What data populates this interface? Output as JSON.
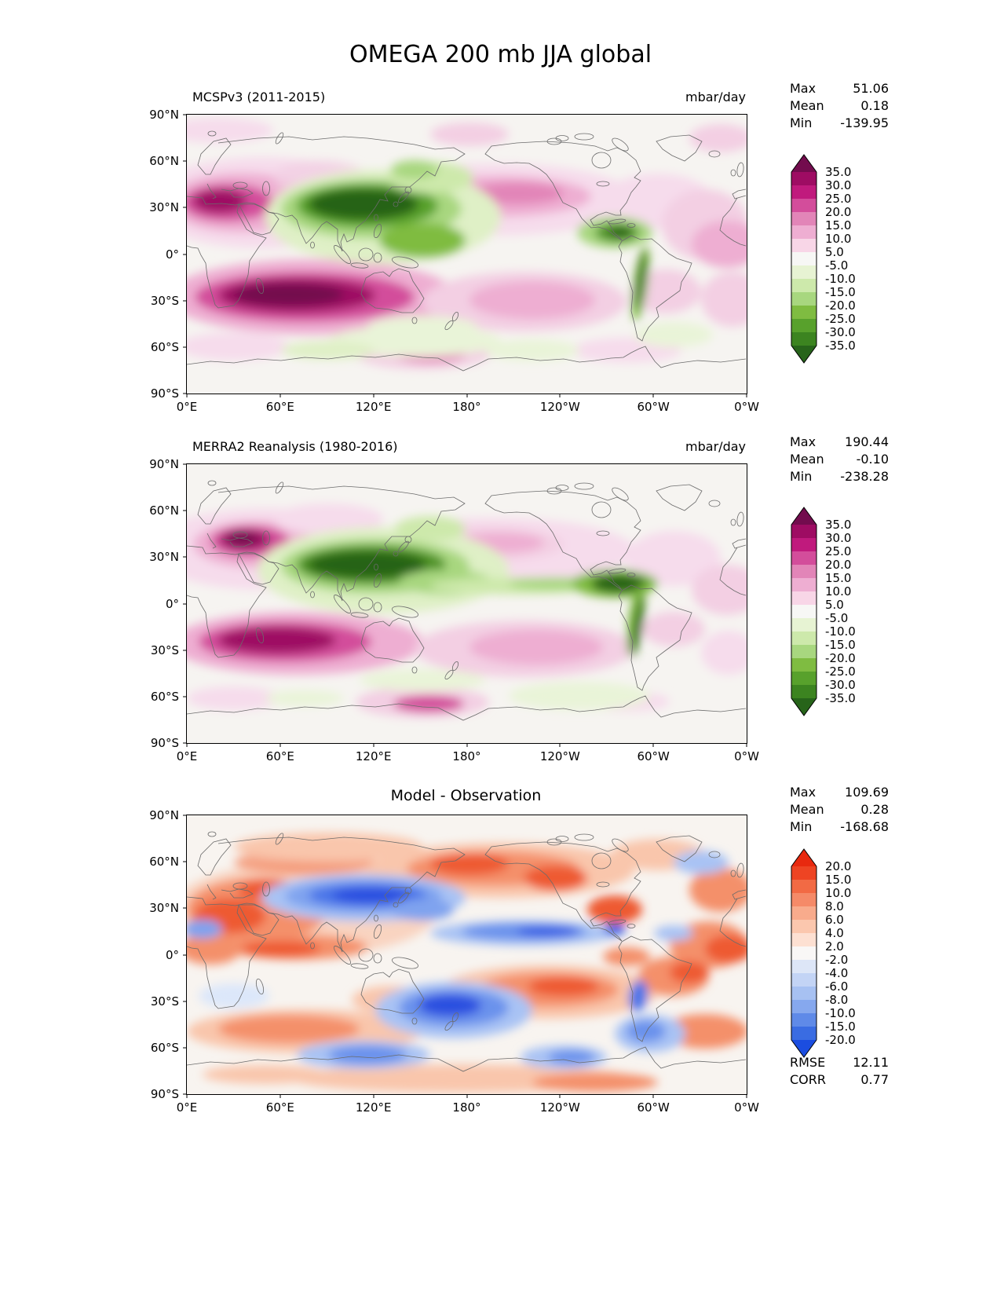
{
  "figure": {
    "title": "OMEGA 200 mb JJA global"
  },
  "axes": {
    "x_ticks": [
      "0°E",
      "60°E",
      "120°E",
      "180°",
      "120°W",
      "60°W",
      "0°W"
    ],
    "y_ticks": [
      "90°N",
      "60°N",
      "30°N",
      "0°",
      "30°S",
      "60°S",
      "90°S"
    ]
  },
  "panels": [
    {
      "title": "MCSPv3 (2011-2015)",
      "units": "mbar/day",
      "stats": [
        {
          "label": "Max",
          "value": "51.06"
        },
        {
          "label": "Mean",
          "value": "0.18"
        },
        {
          "label": "Min",
          "value": "-139.95"
        }
      ],
      "colorbar": {
        "labels": [
          "35.0",
          "30.0",
          "25.0",
          "20.0",
          "15.0",
          "10.0",
          "5.0",
          "-5.0",
          "-10.0",
          "-15.0",
          "-20.0",
          "-25.0",
          "-30.0",
          "-35.0"
        ],
        "colors": [
          "#730c4e",
          "#9e0c63",
          "#c01a7d",
          "#d34d9b",
          "#e285b8",
          "#eeaed2",
          "#f8d6e7",
          "#f7f7f5",
          "#e7f3d3",
          "#cde9ab",
          "#a8d77f",
          "#7fbc41",
          "#58a12c",
          "#3c8420",
          "#27641a"
        ]
      }
    },
    {
      "title": "MERRA2 Reanalysis (1980-2016)",
      "units": "mbar/day",
      "stats": [
        {
          "label": "Max",
          "value": "190.44"
        },
        {
          "label": "Mean",
          "value": "-0.10"
        },
        {
          "label": "Min",
          "value": "-238.28"
        }
      ],
      "colorbar": {
        "labels": [
          "35.0",
          "30.0",
          "25.0",
          "20.0",
          "15.0",
          "10.0",
          "5.0",
          "-5.0",
          "-10.0",
          "-15.0",
          "-20.0",
          "-25.0",
          "-30.0",
          "-35.0"
        ],
        "colors": [
          "#730c4e",
          "#9e0c63",
          "#c01a7d",
          "#d34d9b",
          "#e285b8",
          "#eeaed2",
          "#f8d6e7",
          "#f7f7f5",
          "#e7f3d3",
          "#cde9ab",
          "#a8d77f",
          "#7fbc41",
          "#58a12c",
          "#3c8420",
          "#27641a"
        ]
      }
    },
    {
      "title": "Model - Observation",
      "units": "",
      "stats": [
        {
          "label": "Max",
          "value": "109.69"
        },
        {
          "label": "Mean",
          "value": "0.28"
        },
        {
          "label": "Min",
          "value": "-168.68"
        }
      ],
      "extra_stats": [
        {
          "label": "RMSE",
          "value": "12.11"
        },
        {
          "label": "CORR",
          "value": "0.77"
        }
      ],
      "colorbar": {
        "labels": [
          "20.0",
          "15.0",
          "10.0",
          "8.0",
          "6.0",
          "4.0",
          "2.0",
          "-2.0",
          "-4.0",
          "-6.0",
          "-8.0",
          "-10.0",
          "-15.0",
          "-20.0"
        ],
        "colors": [
          "#e8290f",
          "#ee4423",
          "#f26a44",
          "#f58a68",
          "#f8ab8c",
          "#fbc7ae",
          "#fde0d2",
          "#f9f7f6",
          "#dde6f7",
          "#c3d4f5",
          "#a7c1f2",
          "#86a8ee",
          "#5f8ae8",
          "#3a6ce2",
          "#1b4de0"
        ]
      }
    }
  ],
  "chart_data": {
    "type": "heatmap",
    "subtype": "global filled-contour latitude-longitude maps",
    "variable": "OMEGA at 200 mb (vertical pressure velocity)",
    "season": "JJA",
    "region": "global",
    "units": "mbar/day",
    "figure_title": "OMEGA 200 mb JJA global",
    "x_axis": {
      "label": "longitude",
      "ticks": [
        "0°E",
        "60°E",
        "120°E",
        "180°",
        "120°W",
        "60°W",
        "0°W"
      ],
      "range_deg": [
        0,
        360
      ]
    },
    "y_axis": {
      "label": "latitude",
      "ticks": [
        "90°N",
        "60°N",
        "30°N",
        "0°",
        "30°S",
        "60°S",
        "90°S"
      ],
      "range_deg": [
        90,
        -90
      ]
    },
    "panels": [
      {
        "title": "MCSPv3 (2011-2015)",
        "max": 51.06,
        "mean": 0.18,
        "min": -139.95,
        "contour_levels": [
          35,
          30,
          25,
          20,
          15,
          10,
          5,
          -5,
          -10,
          -15,
          -20,
          -25,
          -30,
          -35
        ],
        "colormap": "magenta/pink (positive, subsidence) → white → green (negative, ascent)",
        "notable_features": "strong magenta over Middle East/N Africa ~30N; dark magenta band across S Indian Ocean ~25S; dark green over S/SE Asia monsoon region; green over Central America and Andes"
      },
      {
        "title": "MERRA2 Reanalysis (1980-2016)",
        "max": 190.44,
        "mean": -0.1,
        "min": -238.28,
        "contour_levels": [
          35,
          30,
          25,
          20,
          15,
          10,
          5,
          -5,
          -10,
          -15,
          -20,
          -25,
          -30,
          -35
        ],
        "colormap": "magenta/pink (positive) → white → green (negative)",
        "notable_features": "dark magenta core over Middle East ~30N; green band along S Asia and Pacific ITCZ to Central America; magenta band S Indian Ocean"
      },
      {
        "title": "Model - Observation",
        "max": 109.69,
        "mean": 0.28,
        "min": -168.68,
        "rmse": 12.11,
        "corr": 0.77,
        "contour_levels": [
          20,
          15,
          10,
          8,
          6,
          4,
          2,
          -2,
          -4,
          -6,
          -8,
          -10,
          -15,
          -20
        ],
        "colormap": "red (positive bias) → white → blue (negative bias)",
        "notable_features": "strong blue bias band over S Asia ~20N; blue equatorial Pacific band; blue S-central Pacific blob; widespread red bias over N Africa, N Pacific, S Pacific and S Indian Ocean"
      }
    ]
  }
}
